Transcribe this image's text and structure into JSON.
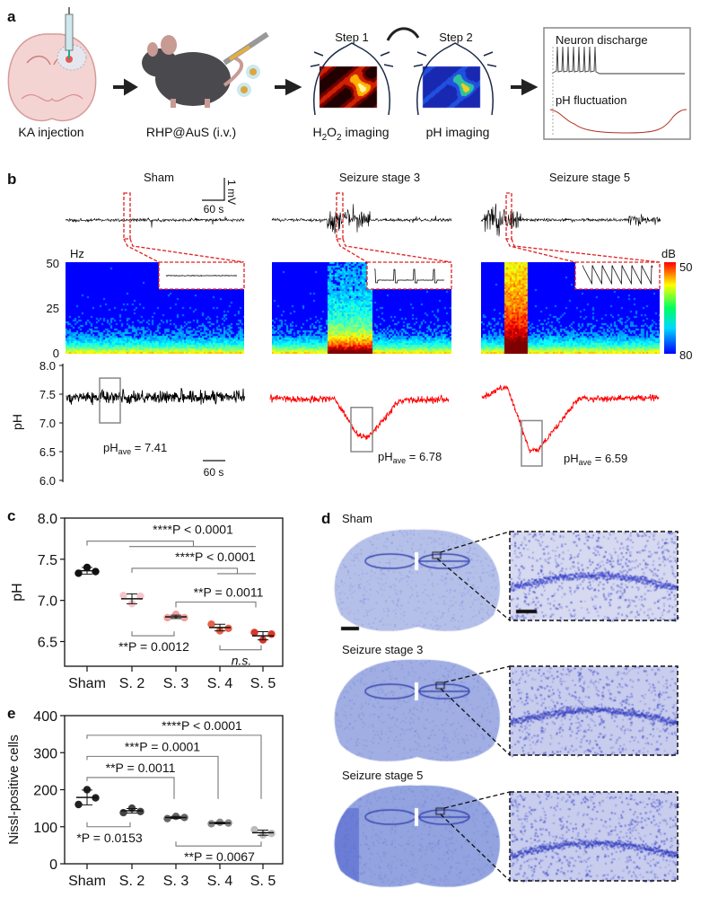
{
  "panel_a": {
    "label": "a",
    "steps": [
      "KA injection",
      "RHP@AuS (i.v.)"
    ],
    "step1": "Step 1",
    "step2": "Step 2",
    "h2o2_imaging": {
      "h": "H",
      "sub1": "2",
      "o": "O",
      "sub2": "2",
      "rest": " imaging"
    },
    "ph_imaging": "pH imaging",
    "box": {
      "neuron_discharge": "Neuron discharge",
      "ph_fluctuation": "pH fluctuation"
    },
    "icons": [
      "brain-section-icon",
      "syringe-icon",
      "mouse-icon",
      "nanoparticle-icon",
      "arrow-right-icon",
      "curved-arrow-icon",
      "mouse-head-icon"
    ]
  },
  "panel_b": {
    "label": "b",
    "titles": [
      "Sham",
      "Seizure stage 3",
      "Seizure stage 5"
    ],
    "scale_mv": "1 mV",
    "scale_time": "60 s",
    "spectrogram": {
      "unit": "Hz",
      "ticks": [
        "50",
        "25",
        "0"
      ],
      "colorbar_unit": "dB",
      "colorbar_ticks": [
        "50",
        "80"
      ]
    },
    "ph_axis": {
      "label": "pH",
      "ticks": [
        "8.0",
        "7.5",
        "7.0",
        "6.5",
        "6.0"
      ]
    },
    "ph_ave": [
      {
        "main": "pH",
        "sub": "ave",
        "value": " = 7.41"
      },
      {
        "main": "pH",
        "sub": "ave",
        "value": " = 6.78"
      },
      {
        "main": "pH",
        "sub": "ave",
        "value": " = 6.59"
      }
    ],
    "time_scale": "60 s",
    "trace_colors": [
      "#000000",
      "#ff0000",
      "#ff0000"
    ]
  },
  "panel_d": {
    "label": "d",
    "titles": [
      "Sham",
      "Seizure stage 3",
      "Seizure stage 5"
    ],
    "stain_color": "#4a5cc8"
  },
  "chart_data": [
    {
      "panel": "c",
      "type": "scatter",
      "ylabel": "pH",
      "ylim": [
        6.2,
        8.0
      ],
      "yticks": [
        "6.5",
        "7.0",
        "7.5",
        "8.0"
      ],
      "categories": [
        "Sham",
        "S. 2",
        "S. 3",
        "S. 4",
        "S. 5"
      ],
      "points": [
        [
          7.33,
          7.4,
          7.35
        ],
        [
          7.06,
          6.96,
          7.05
        ],
        [
          6.79,
          6.83,
          6.79
        ],
        [
          6.71,
          6.63,
          6.66
        ],
        [
          6.61,
          6.52,
          6.59
        ]
      ],
      "mean": [
        7.36,
        7.02,
        6.8,
        6.67,
        6.57
      ],
      "sd": [
        0.04,
        0.06,
        0.02,
        0.04,
        0.05
      ],
      "colors": [
        "#111111",
        "#f5c6cc",
        "#f0a09c",
        "#e8604a",
        "#d8382a"
      ],
      "comparisons": [
        {
          "label": "****P < 0.0001",
          "left": [
            0
          ],
          "right": [
            1,
            4
          ],
          "level": 7.72,
          "type": "group"
        },
        {
          "label": "****P < 0.0001",
          "left": [
            1
          ],
          "right": [
            3,
            4
          ],
          "level": 7.39,
          "type": "group"
        },
        {
          "label": "**P = 0.0011",
          "left": [
            2
          ],
          "right": [
            4
          ],
          "level": 6.98,
          "type": "down"
        },
        {
          "label": "**P = 0.0012",
          "left": [
            1
          ],
          "right": [
            2
          ],
          "level": 6.57,
          "type": "up"
        },
        {
          "label": "n.s.",
          "left": [
            3
          ],
          "right": [
            4
          ],
          "level": 6.4,
          "type": "up"
        }
      ],
      "label": "c"
    },
    {
      "panel": "e",
      "type": "scatter",
      "ylabel": "Nissl-positive cells",
      "ylim": [
        0,
        400
      ],
      "yticks": [
        "0",
        "100",
        "200",
        "300",
        "400"
      ],
      "categories": [
        "Sham",
        "S. 2",
        "S. 3",
        "S. 4",
        "S. 5"
      ],
      "points": [
        [
          160,
          200,
          178
        ],
        [
          138,
          150,
          141
        ],
        [
          122,
          128,
          125
        ],
        [
          108,
          112,
          110
        ],
        [
          92,
          78,
          82
        ]
      ],
      "mean": [
        179,
        143,
        125,
        110,
        84
      ],
      "sd": [
        20,
        6,
        3,
        2,
        7
      ],
      "colors": [
        "#222222",
        "#444444",
        "#666666",
        "#888888",
        "#bbbbbb"
      ],
      "comparisons": [
        {
          "label": "****P < 0.0001",
          "left": [
            0
          ],
          "right": [
            4
          ],
          "level": 347,
          "type": "down_long",
          "arm_to": 175
        },
        {
          "label": "***P = 0.0001",
          "left": [
            0
          ],
          "right": [
            3
          ],
          "level": 290,
          "type": "down_long",
          "arm_to": 175
        },
        {
          "label": "**P = 0.0011",
          "left": [
            0
          ],
          "right": [
            2
          ],
          "level": 233,
          "type": "down_long",
          "arm_to": 175
        },
        {
          "label": "*P = 0.0153",
          "left": [
            0
          ],
          "right": [
            1
          ],
          "level": 100,
          "type": "up"
        },
        {
          "label": "**P = 0.0067",
          "left": [
            2
          ],
          "right": [
            4
          ],
          "level": 48,
          "type": "up"
        }
      ],
      "label": "e"
    }
  ]
}
